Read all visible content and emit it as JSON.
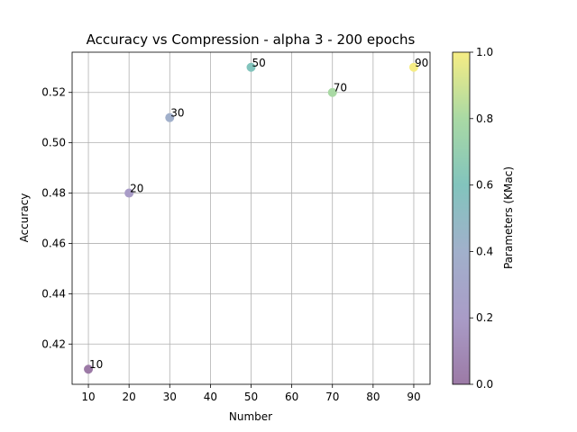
{
  "chart_data": {
    "type": "scatter",
    "title": "Accuracy vs Compression - alpha 3 - 200 epochs",
    "xlabel": "Number",
    "ylabel": "Accuracy",
    "xlim": [
      6,
      94
    ],
    "ylim": [
      0.404,
      0.536
    ],
    "xticks": [
      10,
      20,
      30,
      40,
      50,
      60,
      70,
      80,
      90
    ],
    "yticks": [
      0.42,
      0.44,
      0.46,
      0.48,
      0.5,
      0.52
    ],
    "ytick_labels": [
      "0.42",
      "0.44",
      "0.46",
      "0.48",
      "0.50",
      "0.52"
    ],
    "grid": true,
    "points": [
      {
        "x": 10,
        "y": 0.41,
        "label": "10",
        "color": "#9c7aa6"
      },
      {
        "x": 20,
        "y": 0.48,
        "label": "20",
        "color": "#a99cc7"
      },
      {
        "x": 30,
        "y": 0.51,
        "label": "30",
        "color": "#a1b0cb"
      },
      {
        "x": 50,
        "y": 0.53,
        "label": "50",
        "color": "#82c4bd"
      },
      {
        "x": 70,
        "y": 0.52,
        "label": "70",
        "color": "#a9d9a4"
      },
      {
        "x": 90,
        "y": 0.53,
        "label": "90",
        "color": "#f6ed84"
      }
    ],
    "colorbar": {
      "label": "Parameters (KMac)",
      "range": [
        0.0,
        1.0
      ],
      "ticks": [
        0.0,
        0.2,
        0.4,
        0.6,
        0.8,
        1.0
      ],
      "tick_labels": [
        "0.0",
        "0.2",
        "0.4",
        "0.6",
        "0.8",
        "1.0"
      ],
      "colors": [
        "#9c7aa6",
        "#a99cc7",
        "#a1b0cb",
        "#82c4bd",
        "#a9d9a4",
        "#f6ed84"
      ]
    }
  }
}
